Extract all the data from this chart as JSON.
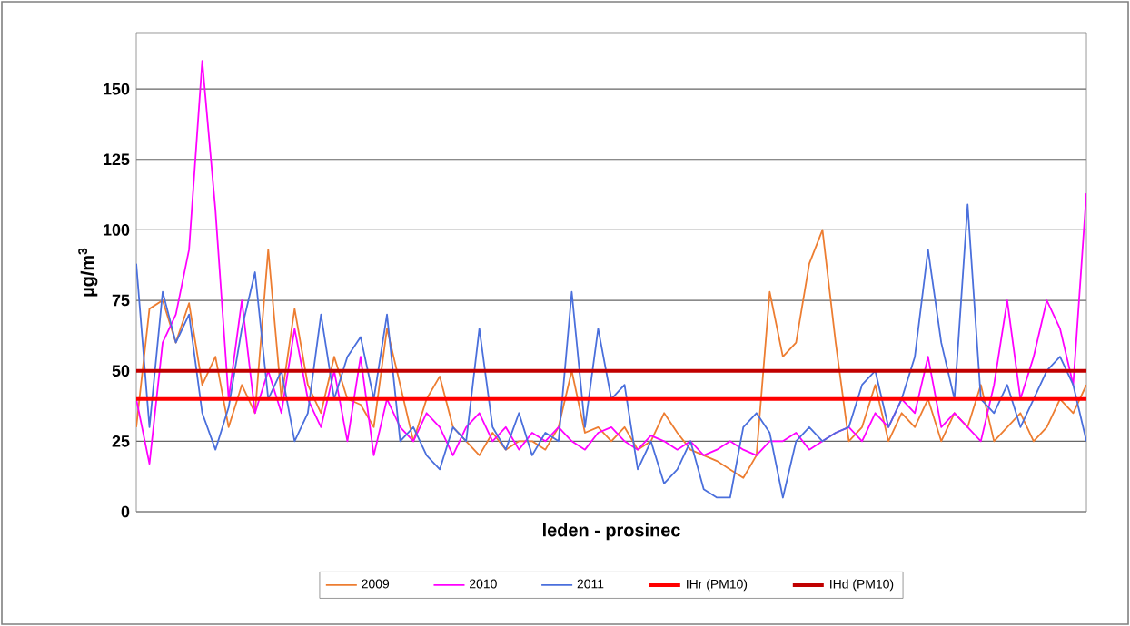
{
  "chart_data": {
    "type": "line",
    "xlabel": "leden - prosinec",
    "ylabel": "µg/m$^{3}$",
    "categories": [
      null,
      null,
      null,
      null,
      null,
      null,
      null,
      null,
      null,
      null,
      null,
      null,
      null,
      null,
      null,
      null,
      null,
      null,
      null,
      null,
      null,
      null,
      null,
      null,
      null,
      null,
      null,
      null,
      null,
      null,
      null,
      null,
      null,
      null,
      null,
      null,
      null,
      null,
      null,
      null,
      null,
      null,
      null,
      null,
      null,
      null,
      null,
      null,
      null,
      null,
      null,
      null,
      null,
      null,
      null,
      null,
      null,
      null,
      null,
      null,
      null,
      null,
      null,
      null,
      null,
      null,
      null,
      null,
      null,
      null,
      null,
      null,
      null
    ],
    "series": [
      {
        "name": "2009",
        "color": "#ed7d31",
        "values": [
          30,
          72,
          75,
          60,
          74,
          45,
          55,
          30,
          45,
          35,
          93,
          40,
          72,
          45,
          35,
          55,
          40,
          38,
          30,
          65,
          45,
          25,
          40,
          48,
          30,
          25,
          20,
          28,
          22,
          25,
          25,
          22,
          30,
          50,
          28,
          30,
          25,
          30,
          22,
          25,
          35,
          28,
          22,
          20,
          18,
          15,
          12,
          20,
          78,
          55,
          60,
          88,
          100,
          60,
          25,
          30,
          45,
          25,
          35,
          30,
          40,
          25,
          35,
          30,
          45,
          25,
          30,
          35,
          25,
          30,
          40,
          35,
          45
        ]
      },
      {
        "name": "2010",
        "color": "#ff00ff",
        "values": [
          40,
          17,
          60,
          70,
          93,
          160,
          107,
          40,
          75,
          35,
          50,
          35,
          65,
          40,
          30,
          50,
          25,
          55,
          20,
          40,
          30,
          25,
          35,
          30,
          20,
          30,
          35,
          25,
          30,
          22,
          28,
          25,
          30,
          25,
          22,
          28,
          30,
          25,
          22,
          27,
          25,
          22,
          25,
          20,
          22,
          25,
          22,
          20,
          25,
          25,
          28,
          22,
          25,
          28,
          30,
          25,
          35,
          30,
          40,
          35,
          55,
          30,
          35,
          30,
          25,
          45,
          75,
          40,
          55,
          75,
          65,
          45,
          113
        ]
      },
      {
        "name": "2011",
        "color": "#4a6fdc",
        "values": [
          88,
          30,
          78,
          60,
          70,
          35,
          22,
          37,
          65,
          85,
          40,
          50,
          25,
          35,
          70,
          40,
          55,
          62,
          40,
          70,
          25,
          30,
          20,
          15,
          30,
          25,
          65,
          30,
          22,
          35,
          20,
          28,
          25,
          78,
          30,
          65,
          40,
          45,
          15,
          25,
          10,
          15,
          25,
          8,
          5,
          5,
          30,
          35,
          28,
          5,
          25,
          30,
          25,
          28,
          30,
          45,
          50,
          30,
          40,
          55,
          93,
          60,
          40,
          109,
          40,
          35,
          45,
          30,
          40,
          50,
          55,
          45,
          25
        ]
      }
    ],
    "ref_lines": [
      {
        "axis": "y",
        "value": 40,
        "label": "IHr (PM10)",
        "color": "#ff0000"
      },
      {
        "axis": "y",
        "value": 50,
        "label": "IHd (PM10)",
        "color": "#c00000"
      }
    ],
    "ylim": [
      0,
      170
    ],
    "yticks": [
      0,
      25,
      50,
      75,
      100,
      125,
      150
    ],
    "grid": "y",
    "legend": "bottom",
    "marker": "none",
    "line_style": "solid"
  }
}
